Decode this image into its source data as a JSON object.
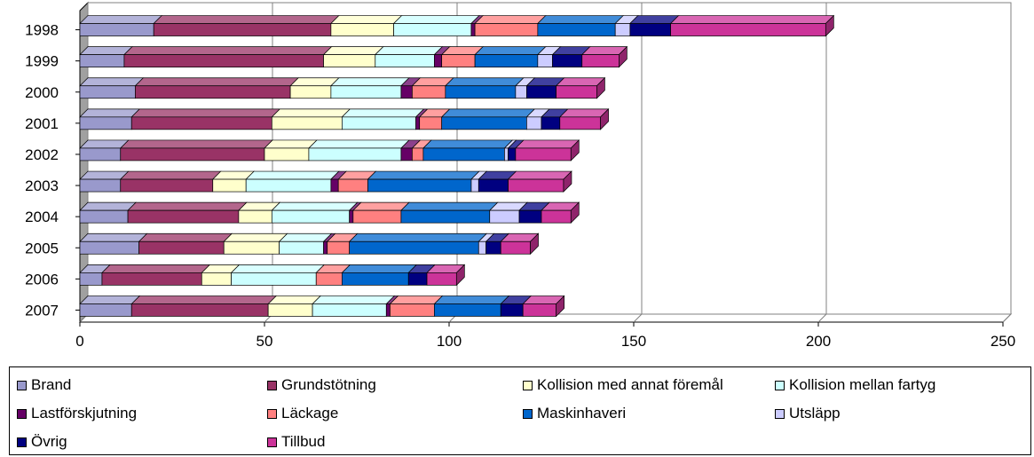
{
  "chart_data": {
    "type": "bar",
    "orientation": "horizontal",
    "stacked": true,
    "three_d": true,
    "title": "",
    "xlabel": "",
    "ylabel": "",
    "xlim": [
      0,
      250
    ],
    "x_ticks": [
      "0",
      "50",
      "100",
      "150",
      "200",
      "250"
    ],
    "grid": true,
    "legend_position": "bottom",
    "categories": [
      "1998",
      "1999",
      "2000",
      "2001",
      "2002",
      "2003",
      "2004",
      "2005",
      "2006",
      "2007"
    ],
    "series": [
      {
        "name": "Brand",
        "color": "#9999cc",
        "values": [
          20,
          12,
          15,
          14,
          11,
          11,
          13,
          16,
          6,
          14
        ]
      },
      {
        "name": "Grundstötning",
        "color": "#993366",
        "values": [
          48,
          54,
          42,
          38,
          39,
          25,
          30,
          23,
          27,
          37
        ]
      },
      {
        "name": "Kollision med annat föremål",
        "color": "#ffffcc",
        "values": [
          17,
          14,
          11,
          19,
          12,
          9,
          9,
          15,
          8,
          12
        ]
      },
      {
        "name": "Kollision mellan fartyg",
        "color": "#ccffff",
        "values": [
          21,
          16,
          19,
          20,
          25,
          23,
          21,
          12,
          23,
          20
        ]
      },
      {
        "name": "Lastförskjutning",
        "color": "#660066",
        "values": [
          1,
          2,
          3,
          1,
          3,
          2,
          1,
          1,
          0,
          1
        ]
      },
      {
        "name": "Läckage",
        "color": "#ff8080",
        "values": [
          17,
          9,
          9,
          6,
          3,
          8,
          13,
          6,
          7,
          12
        ]
      },
      {
        "name": "Maskinhaveri",
        "color": "#0066cc",
        "values": [
          21,
          17,
          19,
          23,
          22,
          28,
          24,
          35,
          18,
          18
        ]
      },
      {
        "name": "Utsläpp",
        "color": "#ccccff",
        "values": [
          4,
          4,
          3,
          4,
          1,
          2,
          8,
          2,
          0,
          0
        ]
      },
      {
        "name": "Övrig",
        "color": "#000080",
        "values": [
          11,
          8,
          8,
          5,
          2,
          8,
          6,
          4,
          5,
          6
        ]
      },
      {
        "name": "Tillbud",
        "color": "#cc3399",
        "values": [
          42,
          10,
          11,
          11,
          15,
          15,
          8,
          8,
          8,
          9
        ]
      }
    ]
  }
}
